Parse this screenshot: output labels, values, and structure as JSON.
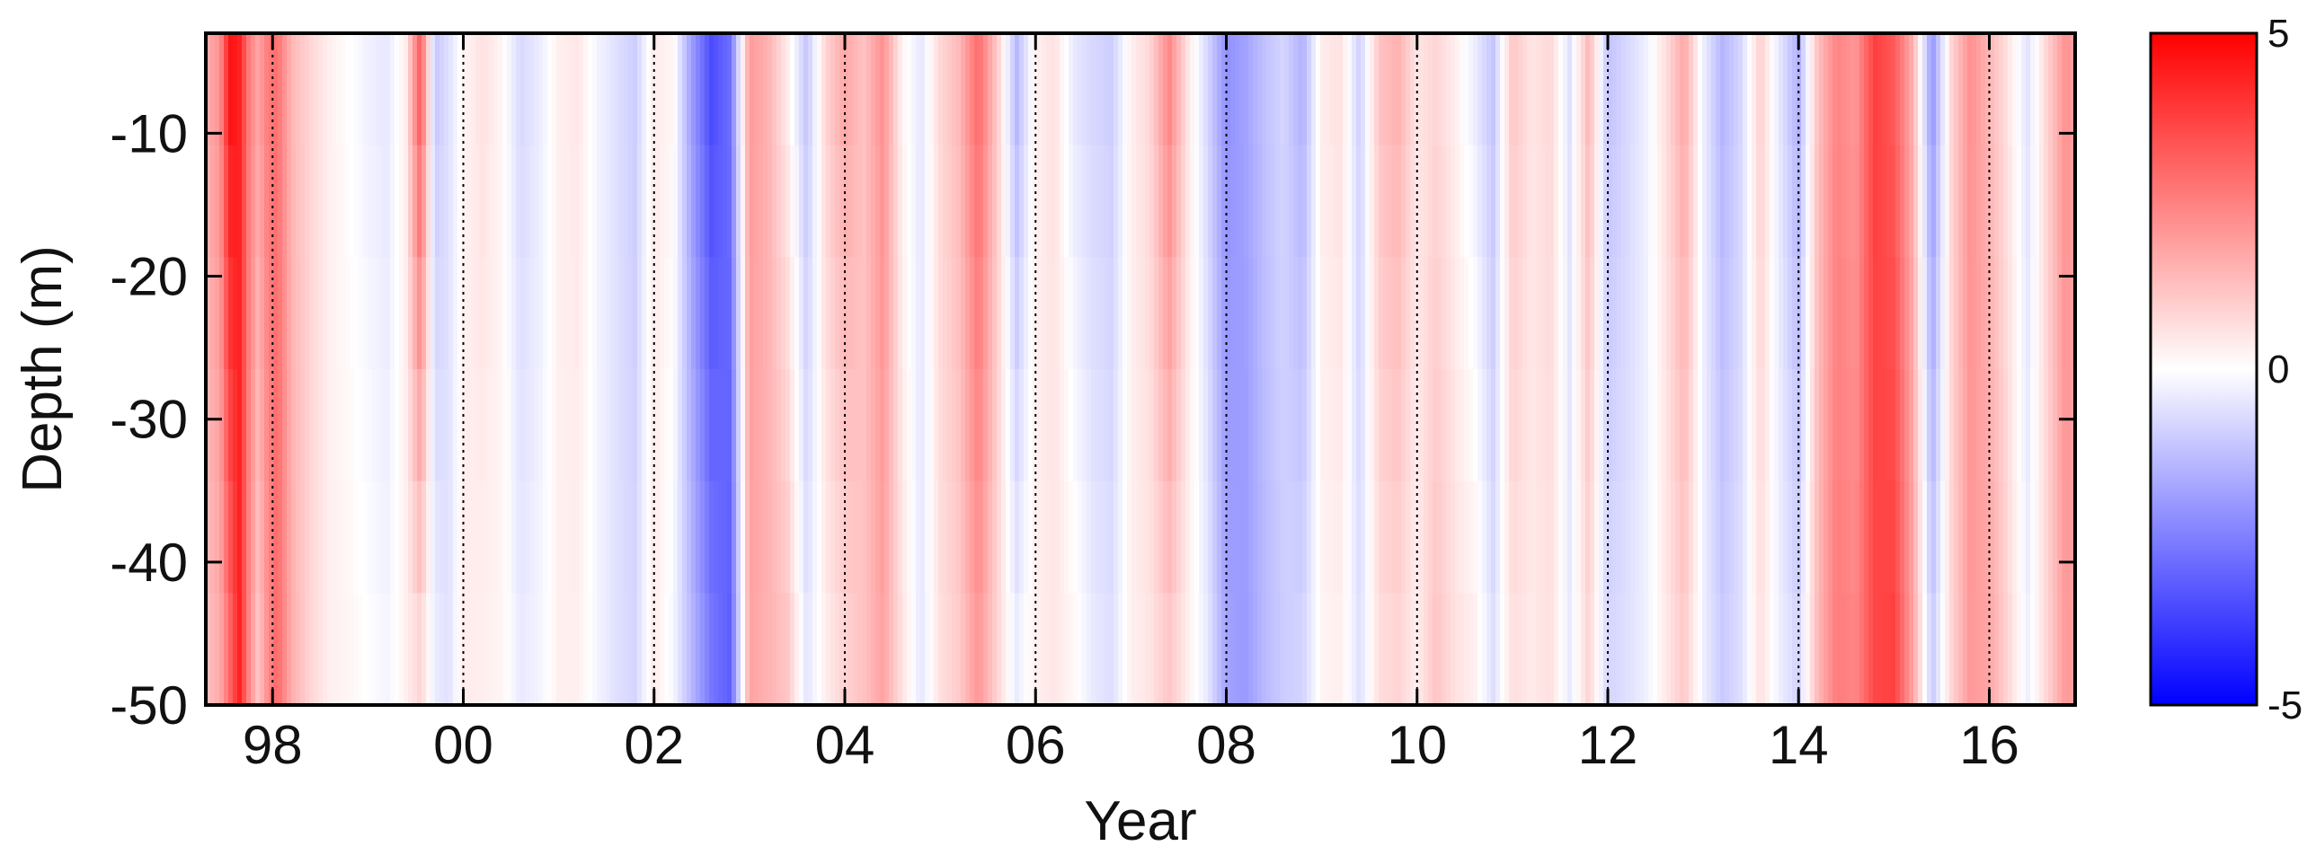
{
  "chart_data": {
    "type": "heatmap",
    "title": "",
    "xlabel": "Year",
    "ylabel": "Depth (m)",
    "x_range": [
      1997.3,
      2016.9
    ],
    "ylim": [
      -50,
      -3
    ],
    "x_ticks": [
      {
        "value": 1998,
        "label": "98"
      },
      {
        "value": 2000,
        "label": "00"
      },
      {
        "value": 2002,
        "label": "02"
      },
      {
        "value": 2004,
        "label": "04"
      },
      {
        "value": 2006,
        "label": "06"
      },
      {
        "value": 2008,
        "label": "08"
      },
      {
        "value": 2010,
        "label": "10"
      },
      {
        "value": 2012,
        "label": "12"
      },
      {
        "value": 2014,
        "label": "14"
      },
      {
        "value": 2016,
        "label": "16"
      }
    ],
    "y_ticks": [
      {
        "value": -10,
        "label": "-10"
      },
      {
        "value": -20,
        "label": "-20"
      },
      {
        "value": -30,
        "label": "-30"
      },
      {
        "value": -40,
        "label": "-40"
      },
      {
        "value": -50,
        "label": "-50"
      }
    ],
    "vertical_dotted_lines_at": [
      1998,
      2000,
      2002,
      2004,
      2006,
      2008,
      2010,
      2012,
      2014,
      2016
    ],
    "colorbar": {
      "min": -5,
      "max": 5,
      "tick_labels": [
        {
          "value": 5,
          "label": "5"
        },
        {
          "value": 0,
          "label": "0"
        },
        {
          "value": -5,
          "label": "-5"
        }
      ],
      "colors": {
        "low": "#0000ff",
        "mid": "#ffffff",
        "high": "#ff0000"
      }
    },
    "anomaly_by_year": {
      "x": [
        1997.3,
        1997.45,
        1997.55,
        1997.65,
        1997.75,
        1997.85,
        1997.95,
        1998.05,
        1998.2,
        1998.4,
        1998.6,
        1998.8,
        1999.0,
        1999.2,
        1999.4,
        1999.55,
        1999.7,
        1999.85,
        2000.0,
        2000.2,
        2000.4,
        2000.6,
        2000.8,
        2001.0,
        2001.2,
        2001.4,
        2001.6,
        2001.8,
        2002.0,
        2002.2,
        2002.4,
        2002.6,
        2002.8,
        2003.0,
        2003.2,
        2003.4,
        2003.6,
        2003.8,
        2004.0,
        2004.2,
        2004.4,
        2004.6,
        2004.8,
        2005.0,
        2005.2,
        2005.4,
        2005.6,
        2005.8,
        2006.0,
        2006.2,
        2006.4,
        2006.6,
        2006.8,
        2007.0,
        2007.2,
        2007.4,
        2007.6,
        2007.8,
        2008.0,
        2008.2,
        2008.4,
        2008.6,
        2008.8,
        2009.0,
        2009.2,
        2009.4,
        2009.6,
        2009.8,
        2010.0,
        2010.2,
        2010.4,
        2010.6,
        2010.8,
        2011.0,
        2011.2,
        2011.4,
        2011.6,
        2011.8,
        2012.0,
        2012.2,
        2012.4,
        2012.6,
        2012.8,
        2013.0,
        2013.2,
        2013.4,
        2013.6,
        2013.8,
        2014.0,
        2014.2,
        2014.4,
        2014.6,
        2014.8,
        2015.0,
        2015.2,
        2015.4,
        2015.6,
        2015.8,
        2016.0,
        2016.2,
        2016.4,
        2016.6,
        2016.8,
        2016.9
      ],
      "surface": [
        1.6,
        2.2,
        4.8,
        4.4,
        2.6,
        1.8,
        2.6,
        2.8,
        1.4,
        0.8,
        0.3,
        0.0,
        -0.3,
        -0.5,
        0.4,
        3.5,
        -1.2,
        -0.6,
        0.2,
        0.6,
        0.2,
        -0.8,
        -0.4,
        0.3,
        0.5,
        -0.2,
        -0.6,
        -1.0,
        0.4,
        0.2,
        -2.0,
        -3.6,
        -2.8,
        2.0,
        1.5,
        0.3,
        -1.2,
        0.9,
        1.8,
        1.2,
        2.2,
        0.2,
        -0.5,
        0.8,
        1.4,
        3.0,
        1.0,
        -1.5,
        0.3,
        0.6,
        -0.5,
        -0.8,
        -1.0,
        0.3,
        0.8,
        2.5,
        0.5,
        -0.8,
        -2.2,
        -1.8,
        -1.2,
        -0.8,
        -1.6,
        0.4,
        0.6,
        -1.0,
        1.2,
        1.6,
        0.5,
        0.8,
        0.3,
        -0.4,
        -1.2,
        1.2,
        0.5,
        0.8,
        -0.6,
        1.5,
        -1.2,
        -0.8,
        -0.3,
        0.6,
        1.8,
        -0.3,
        -1.5,
        -0.8,
        1.0,
        -0.5,
        -1.6,
        1.2,
        2.4,
        2.0,
        3.8,
        3.2,
        1.5,
        -2.2,
        0.8,
        2.2,
        1.4,
        0.5,
        -0.6,
        0.8,
        2.2,
        1.8
      ],
      "bottom": [
        1.2,
        1.6,
        2.8,
        4.4,
        2.4,
        1.0,
        2.2,
        3.0,
        1.6,
        0.8,
        0.3,
        0.2,
        0.0,
        -0.2,
        0.3,
        0.6,
        -0.3,
        -0.6,
        0.4,
        0.3,
        0.2,
        -0.4,
        -0.2,
        0.3,
        0.3,
        -0.2,
        -0.6,
        -0.8,
        0.4,
        -0.2,
        -1.4,
        -2.6,
        -3.2,
        1.8,
        1.5,
        1.2,
        -0.5,
        0.3,
        0.8,
        1.2,
        1.8,
        0.6,
        -0.5,
        0.6,
        1.0,
        2.0,
        0.8,
        -0.3,
        0.3,
        0.5,
        0.2,
        -0.4,
        -0.6,
        0.3,
        0.5,
        1.0,
        0.3,
        -0.4,
        -1.8,
        -2.0,
        -1.4,
        -1.0,
        -0.8,
        0.2,
        0.3,
        -0.6,
        0.6,
        0.8,
        0.3,
        1.2,
        0.6,
        0.4,
        -0.6,
        0.6,
        0.4,
        0.6,
        -0.4,
        0.8,
        -0.8,
        -0.6,
        -0.3,
        0.4,
        1.0,
        -0.3,
        -1.0,
        -0.6,
        0.6,
        -0.3,
        -0.8,
        1.4,
        2.6,
        2.4,
        3.6,
        3.8,
        1.8,
        -1.0,
        0.8,
        2.0,
        1.8,
        0.8,
        -0.3,
        0.8,
        2.0,
        1.8
      ]
    }
  }
}
